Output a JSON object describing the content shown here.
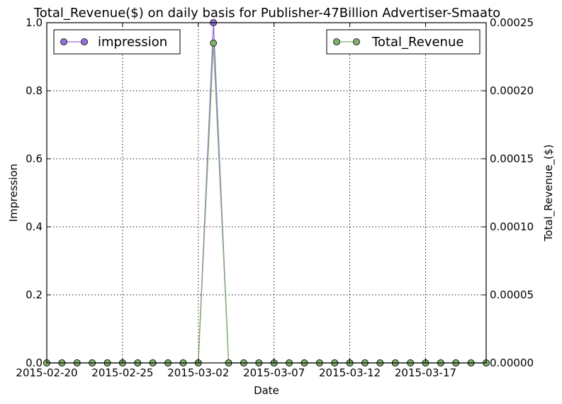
{
  "chart_data": {
    "type": "line",
    "title": "Total_Revenue($) on daily basis for Publisher-47Billion Advertiser-Smaato",
    "xlabel": "Date",
    "ylabel_left": "Impression",
    "ylabel_right": "Total_Revenue_($)",
    "x_range": [
      "2015-02-20",
      "2015-03-21"
    ],
    "x_ticks": [
      "2015-02-20",
      "2015-02-25",
      "2015-03-02",
      "2015-03-07",
      "2015-03-12",
      "2015-03-17"
    ],
    "y_left_range": [
      0,
      1.0
    ],
    "y_left_ticks": [
      "0.0",
      "0.2",
      "0.4",
      "0.6",
      "0.8",
      "1.0"
    ],
    "y_right_range": [
      0,
      0.00025
    ],
    "y_right_ticks": [
      "0.00000",
      "0.00005",
      "0.00010",
      "0.00015",
      "0.00020",
      "0.00025"
    ],
    "grid": true,
    "x": [
      "2015-02-20",
      "2015-02-21",
      "2015-02-22",
      "2015-02-23",
      "2015-02-24",
      "2015-02-25",
      "2015-02-26",
      "2015-02-27",
      "2015-02-28",
      "2015-03-01",
      "2015-03-02",
      "2015-03-03",
      "2015-03-04",
      "2015-03-05",
      "2015-03-06",
      "2015-03-07",
      "2015-03-08",
      "2015-03-09",
      "2015-03-10",
      "2015-03-11",
      "2015-03-12",
      "2015-03-13",
      "2015-03-14",
      "2015-03-15",
      "2015-03-16",
      "2015-03-17",
      "2015-03-18",
      "2015-03-19",
      "2015-03-20",
      "2015-03-21"
    ],
    "series": [
      {
        "name": "impression",
        "axis": "left",
        "color": "#9370db",
        "legend_position": "upper-left",
        "values": [
          0,
          0,
          0,
          0,
          0,
          0,
          0,
          0,
          0,
          0,
          0,
          1,
          0,
          0,
          0,
          0,
          0,
          0,
          0,
          0,
          0,
          0,
          0,
          0,
          0,
          0,
          0,
          0,
          0,
          0
        ]
      },
      {
        "name": "Total_Revenue",
        "axis": "right",
        "color": "#7fb06a",
        "legend_position": "upper-right",
        "values": [
          0,
          0,
          0,
          0,
          0,
          0,
          0,
          0,
          0,
          0,
          0,
          0.000235,
          0,
          0,
          0,
          0,
          0,
          0,
          0,
          0,
          0,
          0,
          0,
          0,
          0,
          0,
          0,
          0,
          0,
          0
        ]
      }
    ]
  }
}
